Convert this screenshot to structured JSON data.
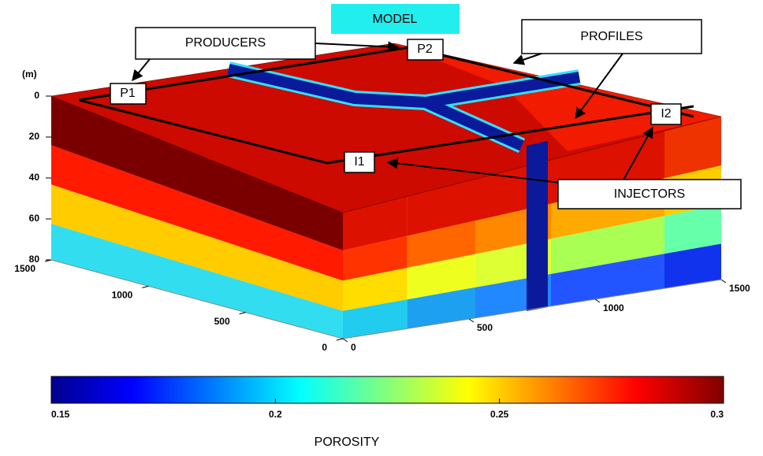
{
  "title": "MODEL",
  "callouts": {
    "producers": "PRODUCERS",
    "profiles": "PROFILES",
    "injectors": "INJECTORS"
  },
  "wells": [
    "P1",
    "P2",
    "I1",
    "I2"
  ],
  "axes": {
    "depth_unit": "(m)",
    "depth_ticks": [
      0,
      20,
      40,
      60,
      80
    ],
    "y_ticks": [
      1500,
      1000,
      500,
      0
    ],
    "x_ticks": [
      0,
      500,
      1000,
      1500
    ]
  },
  "colorbar": {
    "label": "POROSITY",
    "ticks": [
      0.15,
      0.2,
      0.25,
      0.3
    ]
  }
}
